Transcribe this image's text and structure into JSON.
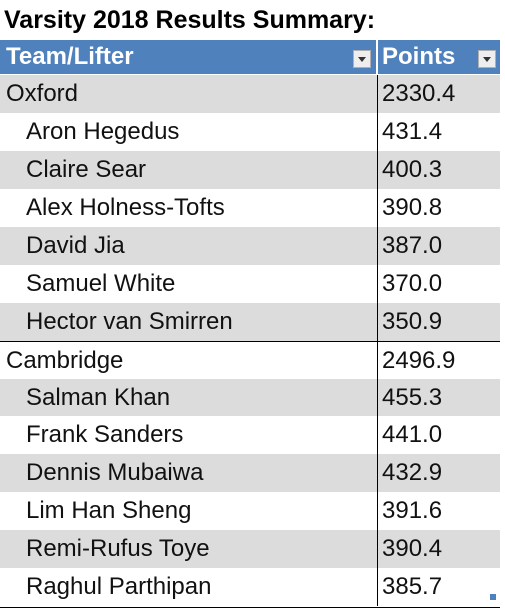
{
  "title": "Varsity 2018 Results Summary:",
  "columns": [
    "Team/Lifter",
    "Points"
  ],
  "rows": [
    {
      "kind": "team",
      "name": "Oxford",
      "points": "2330.4"
    },
    {
      "kind": "member",
      "name": "Aron Hegedus",
      "points": "431.4"
    },
    {
      "kind": "member",
      "name": "Claire Sear",
      "points": "400.3"
    },
    {
      "kind": "member",
      "name": "Alex Holness-Tofts",
      "points": "390.8"
    },
    {
      "kind": "member",
      "name": "David Jia",
      "points": "387.0"
    },
    {
      "kind": "member",
      "name": "Samuel White",
      "points": "370.0"
    },
    {
      "kind": "member",
      "name": "Hector van Smirren",
      "points": "350.9"
    },
    {
      "kind": "team",
      "name": "Cambridge",
      "points": "2496.9"
    },
    {
      "kind": "member",
      "name": "Salman Khan",
      "points": "455.3"
    },
    {
      "kind": "member",
      "name": "Frank Sanders",
      "points": "441.0"
    },
    {
      "kind": "member",
      "name": "Dennis Mubaiwa",
      "points": "432.9"
    },
    {
      "kind": "member",
      "name": "Lim Han Sheng",
      "points": "391.6"
    },
    {
      "kind": "member",
      "name": "Remi-Rufus Toye",
      "points": "390.4"
    },
    {
      "kind": "member",
      "name": "Raghul Parthipan",
      "points": "385.7"
    }
  ],
  "colors": {
    "header": "#4f81bd",
    "band": "#dcdcdc"
  },
  "icons": {
    "filter": "filter-dropdown-icon"
  }
}
